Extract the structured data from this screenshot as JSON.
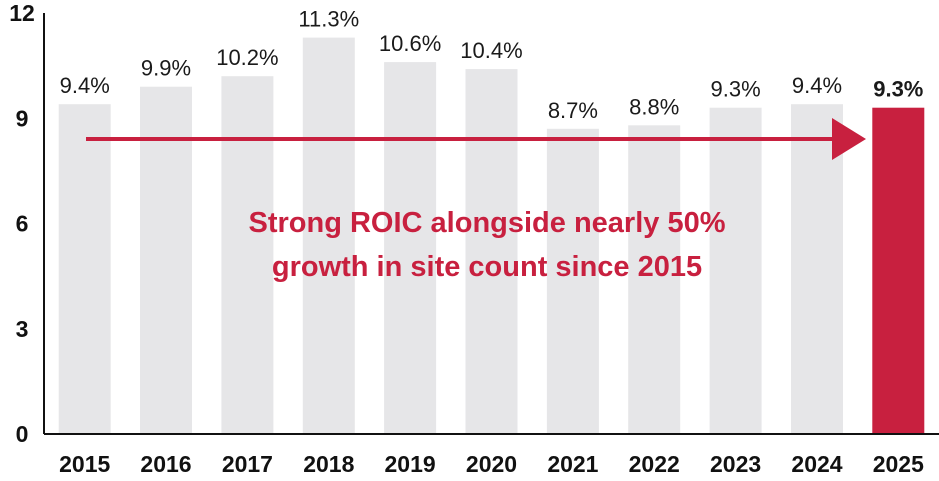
{
  "chart_data": {
    "type": "bar",
    "categories": [
      "2015",
      "2016",
      "2017",
      "2018",
      "2019",
      "2020",
      "2021",
      "2022",
      "2023",
      "2024",
      "2025"
    ],
    "values": [
      9.4,
      9.9,
      10.2,
      11.3,
      10.6,
      10.4,
      8.7,
      8.8,
      9.3,
      9.4,
      9.3
    ],
    "data_labels": [
      "9.4%",
      "9.9%",
      "10.2%",
      "11.3%",
      "10.6%",
      "10.4%",
      "8.7%",
      "8.8%",
      "9.3%",
      "9.4%",
      "9.3%"
    ],
    "highlight_index": 10,
    "ylim": [
      0,
      12
    ],
    "yticks": [
      "0",
      "3",
      "6",
      "9",
      "12"
    ],
    "grid": false,
    "annotation_lines": [
      "Strong ROIC alongside nearly 50%",
      "growth in site count since 2015"
    ],
    "colors": {
      "bar": "#e6e6e8",
      "highlight": "#c8203f",
      "arrow": "#c8203f",
      "annotation": "#c8203f",
      "axis": "#111111"
    }
  }
}
